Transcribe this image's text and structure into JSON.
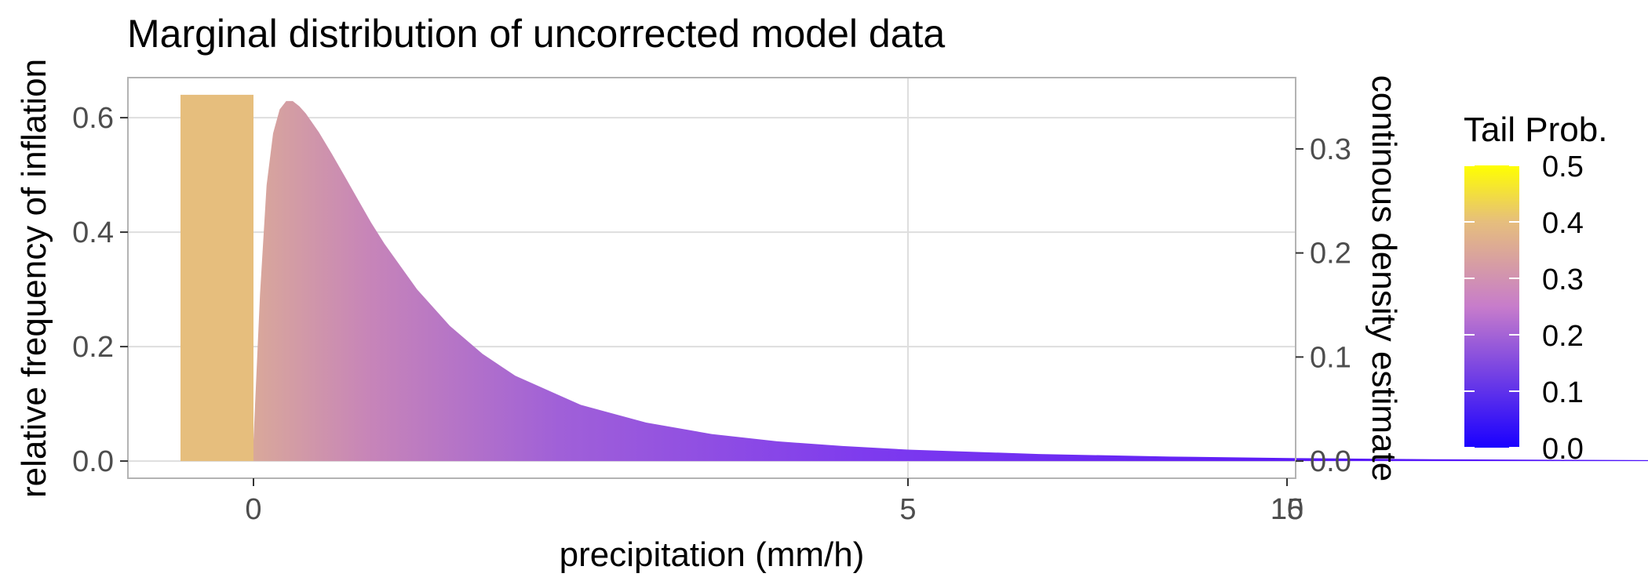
{
  "chart_data": {
    "type": "area",
    "title": "Marginal distribution of uncorrected model data",
    "xlabel": "precipitation (mm/h)",
    "ylabel_left": "relative frequency of inflation",
    "ylabel_right": "continous density estimate",
    "x_ticks": [
      0,
      5,
      10,
      15
    ],
    "y_left_ticks": [
      "0.0",
      "0.2",
      "0.4",
      "0.6"
    ],
    "y_right_ticks": [
      "0.0",
      "0.1",
      "0.2",
      "0.3"
    ],
    "y_left_range": [
      -0.03,
      0.67
    ],
    "y_right_range": [
      -0.0165,
      0.3685
    ],
    "inflation_bar": {
      "value": 0.64,
      "color": "#E6BE7D"
    },
    "density": {
      "x": [
        0,
        0.05,
        0.1,
        0.15,
        0.2,
        0.25,
        0.3,
        0.35,
        0.4,
        0.5,
        0.6,
        0.7,
        0.8,
        0.9,
        1.0,
        1.25,
        1.5,
        1.75,
        2.0,
        2.5,
        3.0,
        3.5,
        4.0,
        4.5,
        5.0,
        6.0,
        7.0,
        8.0,
        9.0,
        10.0,
        11.0,
        12.0,
        13.0,
        14.0,
        14.6
      ],
      "y": [
        0.02,
        0.16,
        0.265,
        0.315,
        0.338,
        0.346,
        0.346,
        0.341,
        0.334,
        0.316,
        0.295,
        0.273,
        0.251,
        0.229,
        0.209,
        0.165,
        0.13,
        0.103,
        0.082,
        0.054,
        0.037,
        0.026,
        0.019,
        0.0145,
        0.011,
        0.0068,
        0.0043,
        0.0028,
        0.0018,
        0.0012,
        0.0008,
        0.0005,
        0.0003,
        0.0002,
        0.0001
      ]
    },
    "legend": {
      "title": "Tail Prob.",
      "position": "right",
      "labels": [
        "0.0",
        "0.1",
        "0.2",
        "0.3",
        "0.4",
        "0.5"
      ],
      "low_color": "#1A00FF",
      "mid_color": "#C77CCB",
      "high_color": "#FFFF00"
    },
    "grid": true,
    "panel_border_color": "#b3b3b3",
    "grid_color": "#dedede"
  }
}
